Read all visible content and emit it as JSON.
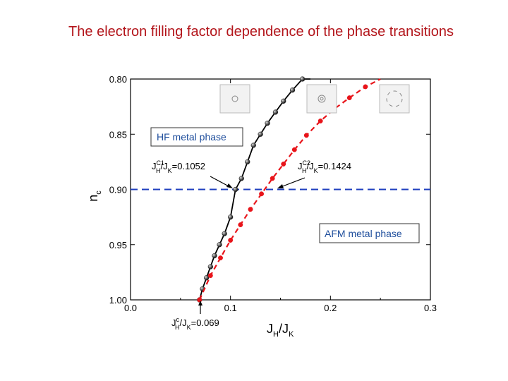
{
  "slide_title": "The electron filling factor dependence of the phase transitions",
  "chart_data": {
    "type": "line",
    "title": "The electron filling factor dependence of the phase transitions",
    "xlabel": "J_H/J_K",
    "ylabel": "n_c",
    "xlim": [
      0.0,
      0.3
    ],
    "ylim": [
      0.8,
      1.0
    ],
    "y_inverted": true,
    "x_ticks": [
      "0.0",
      "0.1",
      "0.2",
      "0.3"
    ],
    "y_ticks": [
      "0.80",
      "0.85",
      "0.90",
      "0.95",
      "1.00"
    ],
    "grid": false,
    "series": [
      {
        "color": "#000000",
        "style": "solid line with sphere markers",
        "x": [
          0.069,
          0.072,
          0.076,
          0.08,
          0.084,
          0.089,
          0.094,
          0.1,
          0.105,
          0.111,
          0.117,
          0.123,
          0.13,
          0.137,
          0.145,
          0.153,
          0.162,
          0.172,
          0.18
        ],
        "y": [
          1.0,
          0.99,
          0.98,
          0.97,
          0.96,
          0.95,
          0.94,
          0.925,
          0.9,
          0.89,
          0.875,
          0.86,
          0.85,
          0.84,
          0.83,
          0.82,
          0.81,
          0.8,
          0.795
        ]
      },
      {
        "color": "#e8141a",
        "style": "dashed line with circle markers",
        "x": [
          0.069,
          0.08,
          0.09,
          0.1,
          0.11,
          0.12,
          0.131,
          0.142,
          0.153,
          0.164,
          0.176,
          0.19,
          0.204,
          0.219,
          0.235,
          0.25
        ],
        "y": [
          1.0,
          0.978,
          0.962,
          0.946,
          0.932,
          0.918,
          0.904,
          0.89,
          0.877,
          0.864,
          0.851,
          0.838,
          0.827,
          0.817,
          0.807,
          0.797
        ]
      }
    ],
    "reference_line": {
      "y": 0.9,
      "color": "#1f3fbf",
      "style": "dashed"
    },
    "annotations": {
      "hf_phase": "HF metal phase",
      "afm_phase": "AFM metal phase",
      "jc1": {
        "label": "/J",
        "value": "=0.1052",
        "sup": "C1",
        "subs": [
          "H",
          "K"
        ]
      },
      "jc2": {
        "label": "/J",
        "value": "=0.1424",
        "sup": "C2",
        "subs": [
          "H",
          "K"
        ]
      },
      "jc": {
        "label": "/J",
        "value": "=0.069",
        "sup": "c",
        "subs": [
          "H",
          "K"
        ]
      }
    },
    "insets": 3
  }
}
